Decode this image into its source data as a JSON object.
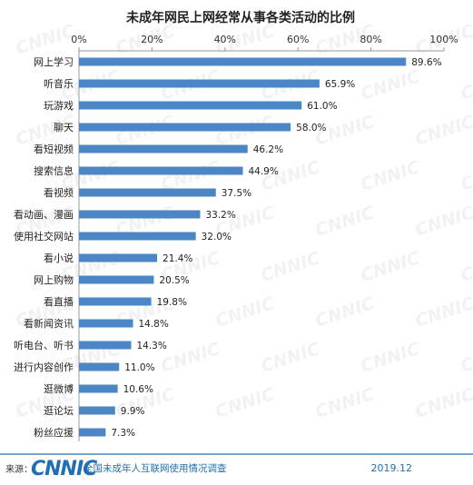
{
  "chart_data": {
    "type": "bar",
    "orientation": "horizontal",
    "title": "未成年网民上网经常从事各类活动的比例",
    "categories": [
      "网上学习",
      "听音乐",
      "玩游戏",
      "聊天",
      "看短视频",
      "搜索信息",
      "看视频",
      "看动画、漫画",
      "使用社交网站",
      "看小说",
      "网上购物",
      "看直播",
      "看新闻资讯",
      "听电台、听书",
      "进行内容创作",
      "逛微博",
      "逛论坛",
      "粉丝应援"
    ],
    "values": [
      89.6,
      65.9,
      61.0,
      58.0,
      46.2,
      44.9,
      37.5,
      33.2,
      32.0,
      21.4,
      20.5,
      19.8,
      14.8,
      14.3,
      11.0,
      10.6,
      9.9,
      7.3
    ],
    "value_labels": [
      "89.6%",
      "65.9%",
      "61.0%",
      "58.0%",
      "46.2%",
      "44.9%",
      "37.5%",
      "33.2%",
      "32.0%",
      "21.4%",
      "20.5%",
      "19.8%",
      "14.8%",
      "14.3%",
      "11.0%",
      "10.6%",
      "9.9%",
      "7.3%"
    ],
    "xlim": [
      0,
      100
    ],
    "x_ticks": [
      0,
      20,
      40,
      60,
      80,
      100
    ],
    "x_tick_labels": [
      "0%",
      "20%",
      "40%",
      "60%",
      "80%",
      "100%"
    ],
    "x_axis_position": "top",
    "grid": false,
    "legend": "none",
    "bar_color": "#4a86c5"
  },
  "watermark": "CNNIC",
  "footer": {
    "source_label": "来源：",
    "logo_text": "CNNIC",
    "survey_name": "全国未成年人互联网使用情况调查",
    "date": "2019.12"
  },
  "colors": {
    "footer_line": "#1f6fb2",
    "axis_line": "#999999"
  }
}
